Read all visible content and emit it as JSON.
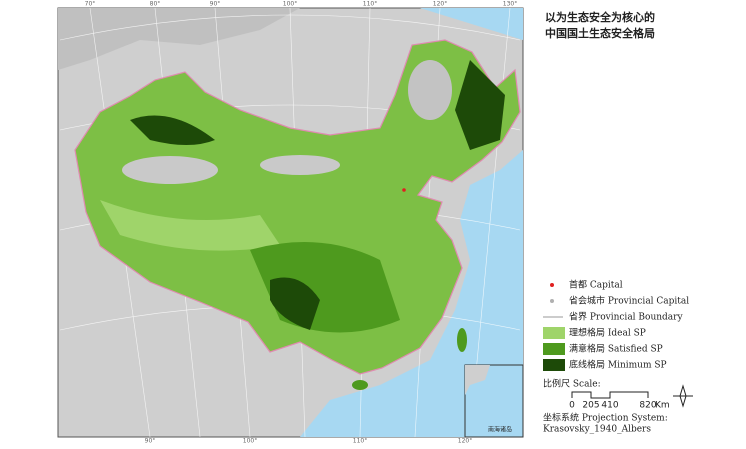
{
  "title": [
    "以为生态安全为核心的",
    "中国国土生态安全格局"
  ],
  "legend": [
    {
      "label": "首都 Capital",
      "symbol": "dot",
      "color": "#e02020"
    },
    {
      "label": "省会城市 Provincial Capital",
      "symbol": "dot",
      "color": "#b0b0b0"
    },
    {
      "label": "省界 Provincial Boundary",
      "symbol": "line",
      "color": "#9a9a9a"
    },
    {
      "label": "理想格局 Ideal SP",
      "symbol": "box",
      "color": "#9fd46a"
    },
    {
      "label": "满意格局 Satisfied SP",
      "symbol": "box",
      "color": "#4e9a1e"
    },
    {
      "label": "底线格局 Minimum SP",
      "symbol": "box",
      "color": "#1d4a08"
    }
  ],
  "scale": {
    "label": "比例尺 Scale:",
    "ticks": [
      0,
      205,
      410,
      820
    ],
    "unit": "Km"
  },
  "projection": [
    "坐标系统 Projection System:",
    "Krasovsky_1940_Albers"
  ],
  "graticule_top": [
    "70°",
    "80°",
    "90°",
    "100°",
    "110°",
    "120°",
    "130°"
  ],
  "graticule_bottom": [
    "90°",
    "100°",
    "110°",
    "120°"
  ],
  "inset_label": "南海诸岛"
}
